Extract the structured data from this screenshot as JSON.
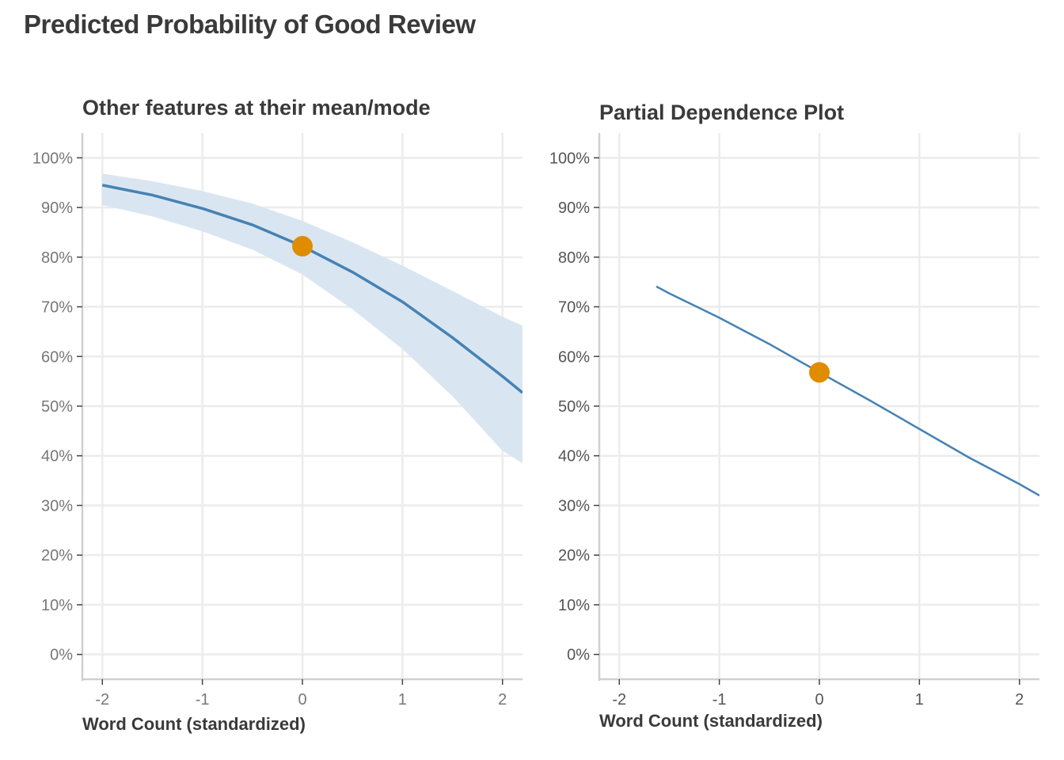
{
  "title": "Predicted Probability of Good Review",
  "colors": {
    "line": "#4682b4",
    "band": "#d9e6f1",
    "point": "#e08c00",
    "grid": "#ececec",
    "axis": "#d0d0d0"
  },
  "chart_data": [
    {
      "type": "line",
      "title": "Other features at their mean/mode",
      "xlabel": "Word Count (standardized)",
      "ylabel": "",
      "xlim": [
        -2.2,
        2.2
      ],
      "ylim": [
        -0.05,
        1.05
      ],
      "x_ticks": [
        "-2",
        "-1",
        "0",
        "1",
        "2"
      ],
      "y_ticks": [
        "0%",
        "10%",
        "20%",
        "30%",
        "40%",
        "50%",
        "60%",
        "70%",
        "80%",
        "90%",
        "100%"
      ],
      "series": [
        {
          "x": [
            -2,
            -1.5,
            -1,
            -0.5,
            0,
            0.5,
            1,
            1.5,
            2,
            2.2
          ],
          "y": [
            0.945,
            0.925,
            0.898,
            0.865,
            0.822,
            0.77,
            0.71,
            0.638,
            0.56,
            0.527
          ],
          "lower": [
            0.905,
            0.882,
            0.852,
            0.815,
            0.765,
            0.695,
            0.615,
            0.52,
            0.41,
            0.385
          ],
          "upper": [
            0.968,
            0.953,
            0.933,
            0.908,
            0.873,
            0.83,
            0.783,
            0.732,
            0.68,
            0.662
          ]
        }
      ],
      "highlight_point": {
        "x": 0,
        "y": 0.822
      },
      "grid": true
    },
    {
      "type": "line",
      "title": "Partial Dependence Plot",
      "xlabel": "Word Count (standardized)",
      "ylabel": "",
      "xlim": [
        -2.2,
        2.2
      ],
      "ylim": [
        -0.05,
        1.05
      ],
      "x_ticks": [
        "-2",
        "-1",
        "0",
        "1",
        "2"
      ],
      "y_ticks": [
        "0%",
        "10%",
        "20%",
        "30%",
        "40%",
        "50%",
        "60%",
        "70%",
        "80%",
        "90%",
        "100%"
      ],
      "series": [
        {
          "x": [
            -1.63,
            -1.5,
            -1,
            -0.5,
            0,
            0.5,
            1,
            1.5,
            2,
            2.2
          ],
          "y": [
            0.741,
            0.727,
            0.678,
            0.625,
            0.568,
            0.512,
            0.454,
            0.396,
            0.343,
            0.32
          ]
        }
      ],
      "highlight_point": {
        "x": 0,
        "y": 0.568
      },
      "grid": true
    }
  ]
}
